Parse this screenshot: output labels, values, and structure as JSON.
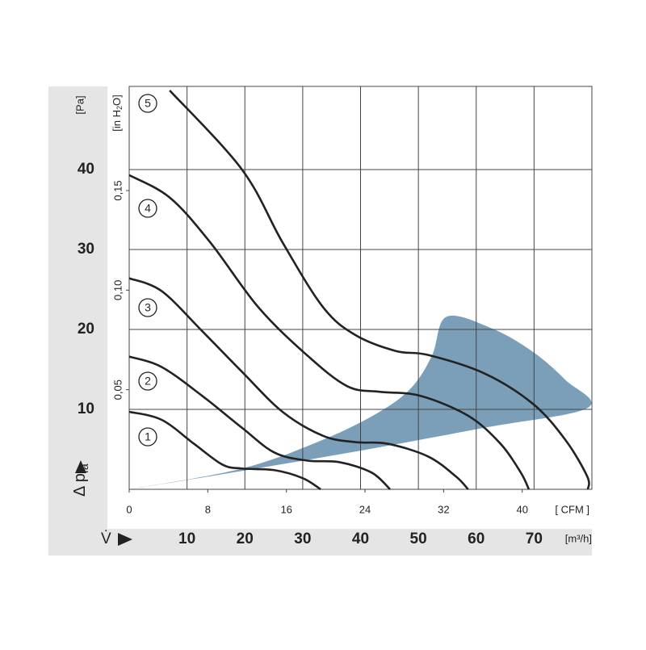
{
  "chart_data": {
    "type": "line",
    "y_label": {
      "main": "Δ p",
      "sub": "fa"
    },
    "x_label": "V̇",
    "y_unit": "[Pa]",
    "y2_unit": {
      "pre": "[in H",
      "sub": "2",
      "post": "O]"
    },
    "x_unit": "[m³/h]",
    "x2_unit": "[ CFM ]",
    "xlim": [
      0,
      80
    ],
    "xticks": [
      10,
      20,
      30,
      40,
      50,
      60,
      70
    ],
    "x2lim": [
      0,
      47.09
    ],
    "x2ticks": [
      0,
      8,
      16,
      24,
      32,
      40
    ],
    "ylim": [
      0,
      50.4
    ],
    "yticks": [
      10,
      20,
      30,
      40
    ],
    "y2lim": [
      0,
      0.2023
    ],
    "y2ticks": [
      {
        "value": 0.05,
        "label": "0,05"
      },
      {
        "value": 0.1,
        "label": "0,10"
      },
      {
        "value": 0.15,
        "label": "0,15"
      }
    ],
    "grid": true,
    "region": {
      "color": "#7b9fb9",
      "x": [
        0,
        19.5,
        40.5,
        61.4,
        79.3,
        75.4,
        69.8,
        62.8,
        54.9,
        52.4,
        48.9,
        43.3,
        33.5,
        19.5,
        0
      ],
      "y": [
        0,
        2.3,
        4.9,
        7.7,
        10.2,
        13.7,
        17.2,
        20.1,
        21.6,
        16.8,
        12.8,
        9.7,
        6.2,
        2.6,
        0
      ]
    },
    "series": [
      {
        "name": "1",
        "color": "#222222",
        "x": [
          0,
          5.6,
          11.2,
          16.1,
          19.5,
          25.1,
          30,
          33.1
        ],
        "values": [
          9.7,
          8.7,
          5.7,
          3.1,
          2.6,
          2.4,
          1.4,
          0
        ]
      },
      {
        "name": "2",
        "color": "#222222",
        "x": [
          0,
          5.6,
          12.6,
          19.5,
          25.1,
          30.7,
          36.3,
          41.9,
          45.1
        ],
        "values": [
          16.6,
          15.3,
          11.7,
          7.7,
          4.6,
          3.6,
          3.4,
          2.1,
          0
        ]
      },
      {
        "name": "3",
        "color": "#222222",
        "x": [
          0,
          5.6,
          12.6,
          19.5,
          26.5,
          33.5,
          39.1,
          44.7,
          51.7,
          56.5,
          58.6
        ],
        "values": [
          26.4,
          24.8,
          19.8,
          14.7,
          9.7,
          6.7,
          5.9,
          5.7,
          4.1,
          1.6,
          0
        ]
      },
      {
        "name": "4",
        "color": "#222222",
        "x": [
          0,
          7,
          14,
          22.3,
          30.7,
          37.7,
          43.3,
          50.3,
          58.6,
          64.2,
          67.7,
          69.1
        ],
        "values": [
          39.3,
          36.5,
          30.9,
          22.8,
          16.8,
          12.9,
          12.2,
          11.7,
          9.2,
          5.7,
          2.1,
          0
        ]
      },
      {
        "name": "5",
        "color": "#222222",
        "x": [
          7,
          19.5,
          26.5,
          33.5,
          39.1,
          46.1,
          51.7,
          61.4,
          69.8,
          75.4,
          79.2,
          79.3
        ],
        "values": [
          49.9,
          40,
          30.9,
          22.8,
          19.3,
          17.3,
          16.8,
          14.5,
          10.7,
          6.2,
          1.6,
          0
        ]
      }
    ]
  }
}
